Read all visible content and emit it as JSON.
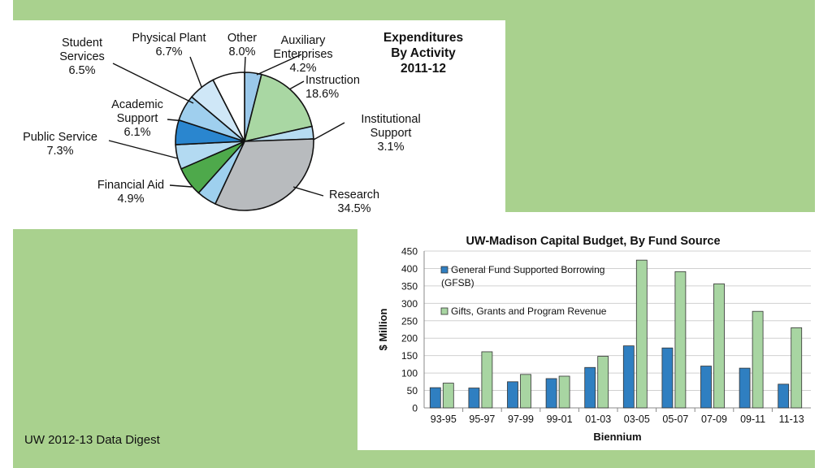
{
  "footer": "UW 2012-13 Data Digest",
  "chart_data": [
    {
      "type": "pie",
      "title_lines": [
        "Expenditures",
        "By Activity",
        "2011-12"
      ],
      "slices": [
        {
          "label_lines": [
            "Auxiliary",
            "Enterprises"
          ],
          "value": 4.2,
          "value_label": "4.2%",
          "color": "#9ac8ea"
        },
        {
          "label_lines": [
            "Instruction"
          ],
          "value": 18.6,
          "value_label": "18.6%",
          "color": "#a9d7a3"
        },
        {
          "label_lines": [
            "Institutional",
            "Support"
          ],
          "value": 3.1,
          "value_label": "3.1%",
          "color": "#b6dcf2"
        },
        {
          "label_lines": [
            "Research"
          ],
          "value": 34.5,
          "value_label": "34.5%",
          "color": "#b8bbbe"
        },
        {
          "label_lines": [
            "Financial Aid"
          ],
          "value": 4.9,
          "value_label": "4.9%",
          "color": "#9ed0ee"
        },
        {
          "label_lines": [
            "Public Service"
          ],
          "value": 7.3,
          "value_label": "7.3%",
          "color": "#4ea94b"
        },
        {
          "label_lines": [],
          "value": 6.1,
          "value_label": "",
          "color": "#b3daf2"
        },
        {
          "label_lines": [
            "Academic",
            "Support"
          ],
          "value": 6.1,
          "value_label": "6.1%",
          "color": "#2a86cf"
        },
        {
          "label_lines": [
            "Student",
            "Services"
          ],
          "value": 6.5,
          "value_label": "6.5%",
          "color": "#9fcfee"
        },
        {
          "label_lines": [
            "Physical Plant"
          ],
          "value": 6.7,
          "value_label": "6.7%",
          "color": "#cfe7f7"
        },
        {
          "label_lines": [
            "Other"
          ],
          "value": 8.0,
          "value_label": "8.0%",
          "color": "#ffffff"
        }
      ]
    },
    {
      "type": "bar",
      "title": "UW-Madison Capital Budget, By Fund Source",
      "xlabel": "Biennium",
      "ylabel": "$ Million",
      "ylim": [
        0,
        450
      ],
      "yticks": [
        0,
        50,
        100,
        150,
        200,
        250,
        300,
        350,
        400,
        450
      ],
      "grid": true,
      "categories": [
        "93-95",
        "95-97",
        "97-99",
        "99-01",
        "01-03",
        "03-05",
        "05-07",
        "07-09",
        "09-11",
        "11-13"
      ],
      "series": [
        {
          "name": "General Fund Supported Borrowing (GFSB)",
          "legend_lines": [
            "General Fund Supported Borrowing",
            "(GFSB)"
          ],
          "color": "#2f7fc1",
          "values": [
            58,
            57,
            75,
            84,
            116,
            178,
            172,
            120,
            114,
            68
          ]
        },
        {
          "name": "Gifts, Grants and Program Revenue",
          "legend_lines": [
            "Gifts, Grants and Program Revenue"
          ],
          "color": "#a8d5a2",
          "values": [
            71,
            161,
            96,
            91,
            148,
            424,
            391,
            356,
            277,
            230
          ]
        }
      ]
    }
  ]
}
